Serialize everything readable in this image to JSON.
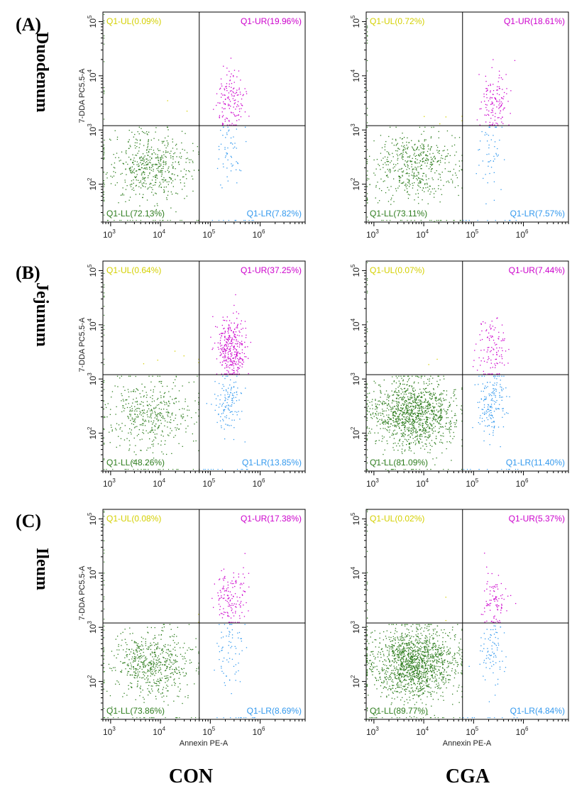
{
  "figure": {
    "panel_labels": [
      "(A)",
      "(B)",
      "(C)"
    ],
    "row_labels": [
      "Duodenum",
      "Jejunum",
      "Ileum"
    ],
    "column_labels": [
      "CON",
      "CGA"
    ]
  },
  "chart_data": [
    {
      "type": "scatter",
      "row": 0,
      "col": 0,
      "group": "CON",
      "tissue": "Duodenum",
      "xlabel": "",
      "ylabel": "7-DDA PC5.5-A",
      "x_scale": "log",
      "y_scale": "log",
      "xlim": [
        700,
        8000000
      ],
      "ylim": [
        20,
        150000
      ],
      "gate": {
        "x": 60000,
        "y": 1200
      },
      "xticks": [
        {
          "v": 1000,
          "t": "10",
          "e": "3"
        },
        {
          "v": 10000,
          "t": "10",
          "e": "4"
        },
        {
          "v": 100000,
          "t": "10",
          "e": "5"
        },
        {
          "v": 1000000,
          "t": "10",
          "e": "6"
        }
      ],
      "yticks": [
        {
          "v": 100,
          "t": "10",
          "e": "2"
        },
        {
          "v": 1000,
          "t": "10",
          "e": "3"
        },
        {
          "v": 10000,
          "t": "10",
          "e": "4"
        },
        {
          "v": 100000,
          "t": "10",
          "e": "5"
        }
      ],
      "quadrants": {
        "UL": "Q1-UL(0.09%)",
        "UR": "Q1-UR(19.96%)",
        "LL": "Q1-LL(72.13%)",
        "LR": "Q1-LR(7.82%)"
      },
      "quadrant_percent": {
        "UL": 0.09,
        "UR": 19.96,
        "LL": 72.13,
        "LR": 7.82
      },
      "colors": {
        "UL": "#d4d000",
        "UR": "#cc00cc",
        "LL": "#2e7d1e",
        "LR": "#3399ee"
      }
    },
    {
      "type": "scatter",
      "row": 0,
      "col": 1,
      "group": "CGA",
      "tissue": "Duodenum",
      "xlabel": "",
      "ylabel": "",
      "x_scale": "log",
      "y_scale": "log",
      "xlim": [
        700,
        8000000
      ],
      "ylim": [
        20,
        150000
      ],
      "gate": {
        "x": 60000,
        "y": 1200
      },
      "xticks": [
        {
          "v": 1000,
          "t": "10",
          "e": "3"
        },
        {
          "v": 10000,
          "t": "10",
          "e": "4"
        },
        {
          "v": 100000,
          "t": "10",
          "e": "5"
        },
        {
          "v": 1000000,
          "t": "10",
          "e": "6"
        }
      ],
      "yticks": [
        {
          "v": 100,
          "t": "10",
          "e": "2"
        },
        {
          "v": 1000,
          "t": "10",
          "e": "3"
        },
        {
          "v": 10000,
          "t": "10",
          "e": "4"
        },
        {
          "v": 100000,
          "t": "10",
          "e": "5"
        }
      ],
      "quadrants": {
        "UL": "Q1-UL(0.72%)",
        "UR": "Q1-UR(18.61%)",
        "LL": "Q1-LL(73.11%)",
        "LR": "Q1-LR(7.57%)"
      },
      "quadrant_percent": {
        "UL": 0.72,
        "UR": 18.61,
        "LL": 73.11,
        "LR": 7.57
      },
      "colors": {
        "UL": "#d4d000",
        "UR": "#cc00cc",
        "LL": "#2e7d1e",
        "LR": "#3399ee"
      }
    },
    {
      "type": "scatter",
      "row": 1,
      "col": 0,
      "group": "CON",
      "tissue": "Jejunum",
      "xlabel": "",
      "ylabel": "7-DDA PC5.5-A",
      "x_scale": "log",
      "y_scale": "log",
      "xlim": [
        700,
        8000000
      ],
      "ylim": [
        20,
        150000
      ],
      "gate": {
        "x": 60000,
        "y": 1200
      },
      "xticks": [
        {
          "v": 1000,
          "t": "10",
          "e": "3"
        },
        {
          "v": 10000,
          "t": "10",
          "e": "4"
        },
        {
          "v": 100000,
          "t": "10",
          "e": "5"
        },
        {
          "v": 1000000,
          "t": "10",
          "e": "6"
        }
      ],
      "yticks": [
        {
          "v": 100,
          "t": "10",
          "e": "2"
        },
        {
          "v": 1000,
          "t": "10",
          "e": "3"
        },
        {
          "v": 10000,
          "t": "10",
          "e": "4"
        },
        {
          "v": 100000,
          "t": "10",
          "e": "5"
        }
      ],
      "quadrants": {
        "UL": "Q1-UL(0.64%)",
        "UR": "Q1-UR(37.25%)",
        "LL": "Q1-LL(48.26%)",
        "LR": "Q1-LR(13.85%)"
      },
      "quadrant_percent": {
        "UL": 0.64,
        "UR": 37.25,
        "LL": 48.26,
        "LR": 13.85
      },
      "colors": {
        "UL": "#d4d000",
        "UR": "#cc00cc",
        "LL": "#2e7d1e",
        "LR": "#3399ee"
      }
    },
    {
      "type": "scatter",
      "row": 1,
      "col": 1,
      "group": "CGA",
      "tissue": "Jejunum",
      "xlabel": "",
      "ylabel": "",
      "x_scale": "log",
      "y_scale": "log",
      "xlim": [
        700,
        8000000
      ],
      "ylim": [
        20,
        150000
      ],
      "gate": {
        "x": 60000,
        "y": 1200
      },
      "xticks": [
        {
          "v": 1000,
          "t": "10",
          "e": "3"
        },
        {
          "v": 10000,
          "t": "10",
          "e": "4"
        },
        {
          "v": 100000,
          "t": "10",
          "e": "5"
        },
        {
          "v": 1000000,
          "t": "10",
          "e": "6"
        }
      ],
      "yticks": [
        {
          "v": 100,
          "t": "10",
          "e": "2"
        },
        {
          "v": 1000,
          "t": "10",
          "e": "3"
        },
        {
          "v": 10000,
          "t": "10",
          "e": "4"
        },
        {
          "v": 100000,
          "t": "10",
          "e": "5"
        }
      ],
      "quadrants": {
        "UL": "Q1-UL(0.07%)",
        "UR": "Q1-UR(7.44%)",
        "LL": "Q1-LL(81.09%)",
        "LR": "Q1-LR(11.40%)"
      },
      "quadrant_percent": {
        "UL": 0.07,
        "UR": 7.44,
        "LL": 81.09,
        "LR": 11.4
      },
      "colors": {
        "UL": "#d4d000",
        "UR": "#cc00cc",
        "LL": "#2e7d1e",
        "LR": "#3399ee"
      }
    },
    {
      "type": "scatter",
      "row": 2,
      "col": 0,
      "group": "CON",
      "tissue": "Ileum",
      "xlabel": "Annexin PE-A",
      "ylabel": "7-DDA PC5.5-A",
      "x_scale": "log",
      "y_scale": "log",
      "xlim": [
        700,
        8000000
      ],
      "ylim": [
        20,
        150000
      ],
      "gate": {
        "x": 60000,
        "y": 1200
      },
      "xticks": [
        {
          "v": 1000,
          "t": "10",
          "e": "3"
        },
        {
          "v": 10000,
          "t": "10",
          "e": "4"
        },
        {
          "v": 100000,
          "t": "10",
          "e": "5"
        },
        {
          "v": 1000000,
          "t": "10",
          "e": "6"
        }
      ],
      "yticks": [
        {
          "v": 100,
          "t": "10",
          "e": "2"
        },
        {
          "v": 1000,
          "t": "10",
          "e": "3"
        },
        {
          "v": 10000,
          "t": "10",
          "e": "4"
        },
        {
          "v": 100000,
          "t": "10",
          "e": "5"
        }
      ],
      "quadrants": {
        "UL": "Q1-UL(0.08%)",
        "UR": "Q1-UR(17.38%)",
        "LL": "Q1-LL(73.86%)",
        "LR": "Q1-LR(8.69%)"
      },
      "quadrant_percent": {
        "UL": 0.08,
        "UR": 17.38,
        "LL": 73.86,
        "LR": 8.69
      },
      "colors": {
        "UL": "#d4d000",
        "UR": "#cc00cc",
        "LL": "#2e7d1e",
        "LR": "#3399ee"
      }
    },
    {
      "type": "scatter",
      "row": 2,
      "col": 1,
      "group": "CGA",
      "tissue": "Ileum",
      "xlabel": "Annexin PE-A",
      "ylabel": "",
      "x_scale": "log",
      "y_scale": "log",
      "xlim": [
        700,
        8000000
      ],
      "ylim": [
        20,
        150000
      ],
      "gate": {
        "x": 60000,
        "y": 1200
      },
      "xticks": [
        {
          "v": 1000,
          "t": "10",
          "e": "3"
        },
        {
          "v": 10000,
          "t": "10",
          "e": "4"
        },
        {
          "v": 100000,
          "t": "10",
          "e": "5"
        },
        {
          "v": 1000000,
          "t": "10",
          "e": "6"
        }
      ],
      "yticks": [
        {
          "v": 100,
          "t": "10",
          "e": "2"
        },
        {
          "v": 1000,
          "t": "10",
          "e": "3"
        },
        {
          "v": 10000,
          "t": "10",
          "e": "4"
        },
        {
          "v": 100000,
          "t": "10",
          "e": "5"
        }
      ],
      "quadrants": {
        "UL": "Q1-UL(0.02%)",
        "UR": "Q1-UR(5.37%)",
        "LL": "Q1-LL(89.77%)",
        "LR": "Q1-LR(4.84%)"
      },
      "quadrant_percent": {
        "UL": 0.02,
        "UR": 5.37,
        "LL": 89.77,
        "LR": 4.84
      },
      "colors": {
        "UL": "#d4d000",
        "UR": "#cc00cc",
        "LL": "#2e7d1e",
        "LR": "#3399ee"
      }
    }
  ]
}
